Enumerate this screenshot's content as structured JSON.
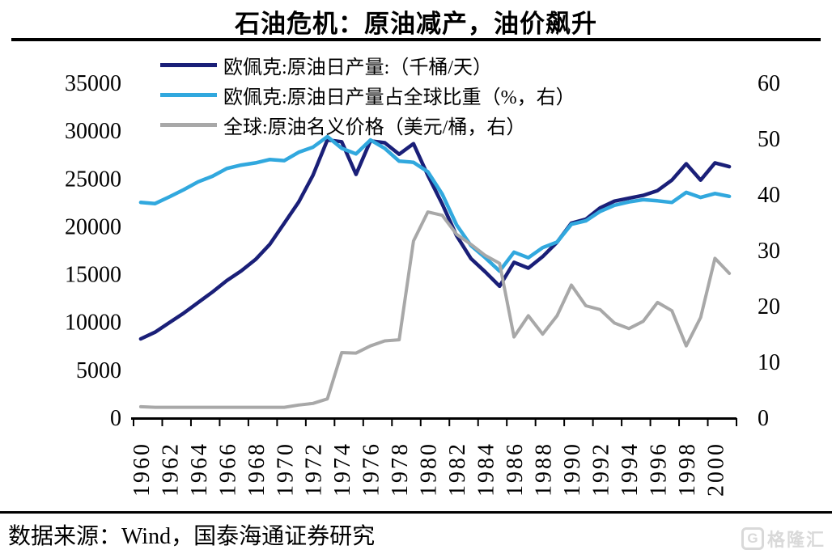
{
  "page": {
    "title": "石油危机：原油减产，油价飙升",
    "source": "数据来源：Wind，国泰海通证券研究",
    "watermark": {
      "logo_letter": "G",
      "brand": "格隆汇"
    }
  },
  "chart_data": {
    "type": "line",
    "title": "石油危机：原油减产，油价飙升",
    "grid": false,
    "legend_position": "top-left",
    "x_years": [
      1960,
      1961,
      1962,
      1963,
      1964,
      1965,
      1966,
      1967,
      1968,
      1969,
      1970,
      1971,
      1972,
      1973,
      1974,
      1975,
      1976,
      1977,
      1978,
      1979,
      1980,
      1981,
      1982,
      1983,
      1984,
      1985,
      1986,
      1987,
      1988,
      1989,
      1990,
      1991,
      1992,
      1993,
      1994,
      1995,
      1996,
      1997,
      1998,
      1999,
      2000,
      2001
    ],
    "x_tick_labels": [
      "1960",
      "1962",
      "1964",
      "1966",
      "1968",
      "1970",
      "1972",
      "1974",
      "1976",
      "1978",
      "1980",
      "1982",
      "1984",
      "1986",
      "1988",
      "1990",
      "1992",
      "1994",
      "1996",
      "1998",
      "2000"
    ],
    "left_axis": {
      "min": 0,
      "max": 35000,
      "tick_step": 5000,
      "tick_labels": [
        "0",
        "5000",
        "10000",
        "15000",
        "20000",
        "25000",
        "30000",
        "35000"
      ]
    },
    "right_axis": {
      "min": 0,
      "max": 60,
      "tick_step": 10,
      "tick_labels": [
        "0",
        "10",
        "20",
        "30",
        "40",
        "50",
        "60"
      ]
    },
    "series": [
      {
        "name": "欧佩克:原油日产量:（千桶/天）",
        "axis": "left",
        "color": "#1a1f78",
        "values": [
          8200,
          8900,
          9900,
          10900,
          12000,
          13100,
          14300,
          15300,
          16500,
          18100,
          20300,
          22500,
          25300,
          29000,
          28800,
          25400,
          28900,
          28700,
          27500,
          28600,
          25300,
          22300,
          19000,
          16600,
          15200,
          13700,
          16200,
          15600,
          16800,
          18300,
          20300,
          20700,
          21900,
          22600,
          22900,
          23200,
          23700,
          24800,
          26500,
          24800,
          26600,
          26200
        ]
      },
      {
        "name": "欧佩克:原油日产量占全球比重（%，右）",
        "axis": "right",
        "color": "#31a8de",
        "values": [
          38.5,
          38.3,
          39.5,
          40.8,
          42.2,
          43.2,
          44.6,
          45.2,
          45.6,
          46.2,
          46.0,
          47.5,
          48.4,
          50.3,
          48.2,
          47.2,
          49.7,
          48.2,
          45.9,
          45.7,
          44.0,
          40.0,
          34.5,
          30.8,
          28.6,
          26.2,
          29.6,
          28.6,
          30.4,
          31.4,
          34.6,
          35.2,
          36.9,
          38.0,
          38.6,
          39.0,
          38.8,
          38.5,
          40.3,
          39.4,
          40.1,
          39.6
        ]
      },
      {
        "name": "全球:原油名义价格（美元/桶，右）",
        "axis": "right",
        "color": "#a8a8a8",
        "values": [
          1.9,
          1.8,
          1.8,
          1.8,
          1.8,
          1.8,
          1.8,
          1.8,
          1.8,
          1.8,
          1.8,
          2.2,
          2.5,
          3.3,
          11.6,
          11.5,
          12.8,
          13.7,
          13.9,
          31.6,
          36.8,
          36.2,
          32.8,
          31.0,
          29.0,
          27.6,
          14.4,
          18.2,
          14.9,
          18.2,
          23.7,
          20.0,
          19.3,
          16.9,
          15.9,
          17.2,
          20.6,
          19.1,
          12.8,
          17.9,
          28.5,
          25.8
        ]
      }
    ]
  }
}
